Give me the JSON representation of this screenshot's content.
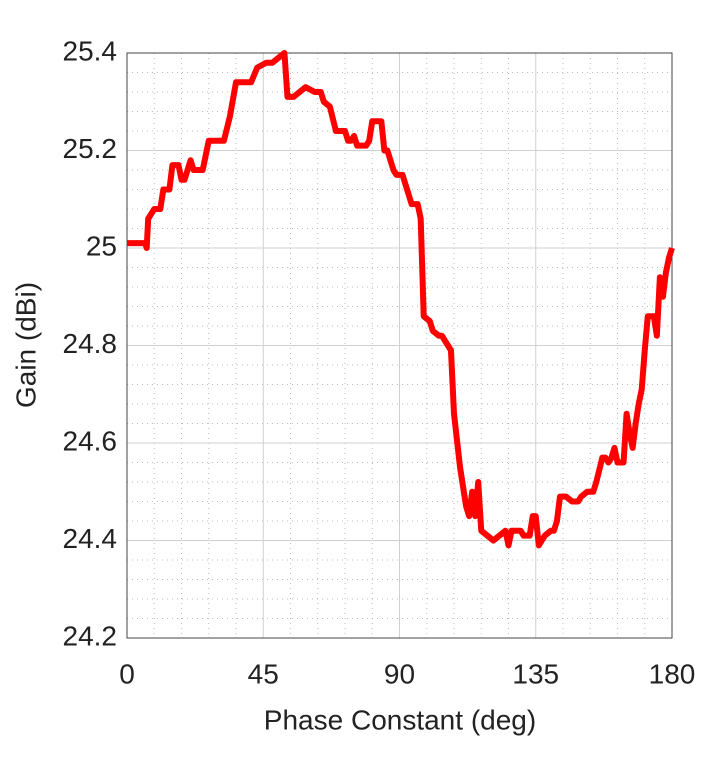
{
  "chart_data": {
    "type": "line",
    "xlabel": "Phase Constant (deg)",
    "ylabel": "Gain (dBi)",
    "xlim": [
      0,
      180
    ],
    "ylim": [
      24.2,
      25.4
    ],
    "xticks": [
      0,
      45,
      90,
      135,
      180
    ],
    "yticks": [
      24.2,
      24.4,
      24.6,
      24.8,
      25,
      25.2,
      25.4
    ],
    "grid": true,
    "minor_grid": true,
    "series": [
      {
        "color": "#ff0000",
        "x": [
          0,
          6,
          6.5,
          7,
          9,
          11,
          12,
          14,
          15,
          17,
          18,
          19,
          21,
          22,
          25,
          27,
          32,
          34,
          36,
          41,
          43,
          46,
          48,
          50,
          52,
          53,
          55,
          59,
          62,
          64,
          65,
          67,
          69,
          72,
          73,
          74,
          75,
          76,
          79,
          80,
          81,
          84,
          85,
          86,
          88,
          89,
          91,
          92,
          94,
          96,
          97,
          98,
          100,
          101,
          103,
          104,
          106,
          107,
          108,
          110,
          112,
          113,
          114,
          115,
          116,
          117,
          119,
          121,
          123,
          125,
          126,
          127,
          130,
          131,
          133,
          134,
          135,
          136,
          138,
          140,
          141,
          142,
          143,
          145,
          147,
          149,
          150,
          152,
          154,
          155,
          157,
          158,
          159,
          160,
          161,
          162,
          164,
          165,
          166,
          167,
          168,
          169,
          170,
          171,
          172,
          174,
          175,
          176,
          177,
          178,
          179,
          180
        ],
        "values": [
          25.01,
          25.01,
          25.0,
          25.06,
          25.08,
          25.08,
          25.12,
          25.12,
          25.17,
          25.17,
          25.14,
          25.14,
          25.18,
          25.16,
          25.16,
          25.22,
          25.22,
          25.27,
          25.34,
          25.34,
          25.37,
          25.38,
          25.38,
          25.39,
          25.4,
          25.31,
          25.31,
          25.33,
          25.32,
          25.32,
          25.3,
          25.29,
          25.24,
          25.24,
          25.22,
          25.22,
          25.23,
          25.21,
          25.21,
          25.22,
          25.26,
          25.26,
          25.2,
          25.2,
          25.16,
          25.15,
          25.15,
          25.13,
          25.09,
          25.09,
          25.06,
          24.86,
          24.85,
          24.83,
          24.82,
          24.82,
          24.8,
          24.79,
          24.66,
          24.55,
          24.47,
          24.45,
          24.5,
          24.45,
          24.52,
          24.42,
          24.41,
          24.4,
          24.41,
          24.42,
          24.39,
          24.42,
          24.42,
          24.41,
          24.41,
          24.45,
          24.45,
          24.39,
          24.41,
          24.42,
          24.42,
          24.44,
          24.49,
          24.49,
          24.48,
          24.48,
          24.49,
          24.5,
          24.5,
          24.52,
          24.57,
          24.57,
          24.56,
          24.57,
          24.59,
          24.56,
          24.56,
          24.66,
          24.62,
          24.59,
          24.64,
          24.68,
          24.71,
          24.79,
          24.86,
          24.86,
          24.82,
          24.94,
          24.9,
          24.95,
          24.98,
          25.0
        ]
      }
    ]
  }
}
